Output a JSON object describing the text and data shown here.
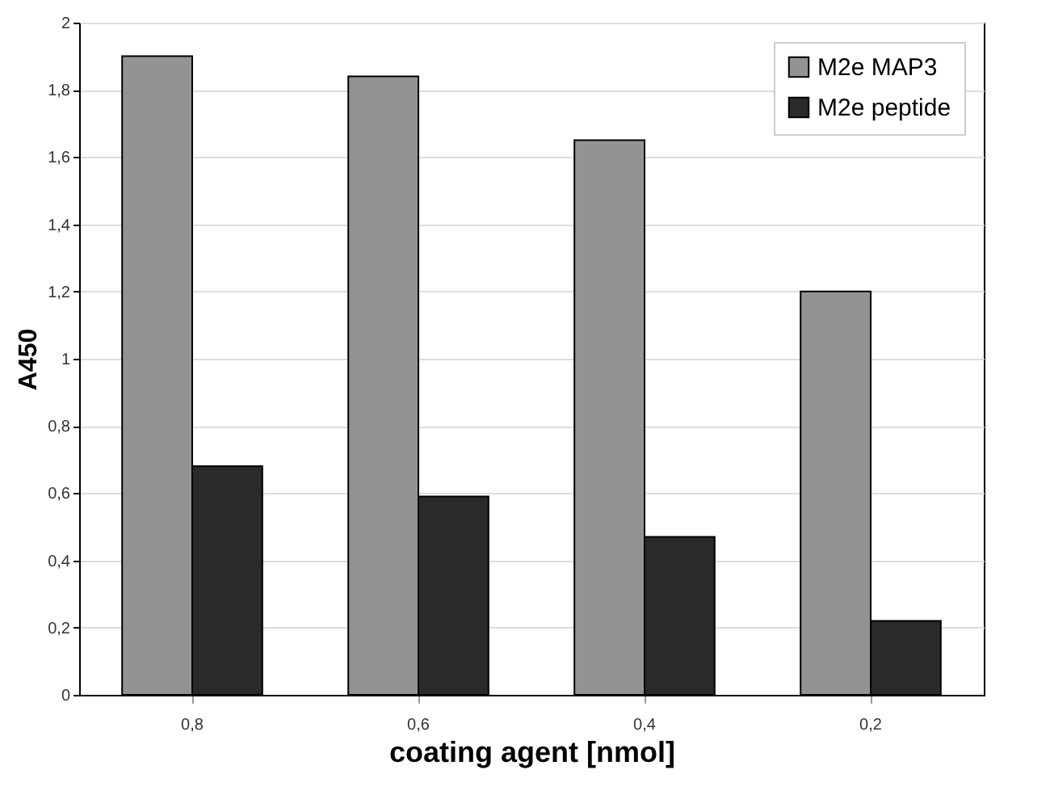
{
  "chart_data": {
    "type": "bar",
    "xlabel": "coating agent [nmol]",
    "ylabel": "A450",
    "categories": [
      "0,8",
      "0,6",
      "0,4",
      "0,2"
    ],
    "series": [
      {
        "name": "M2e MAP3",
        "color": "#939393",
        "values": [
          1.9,
          1.84,
          1.65,
          1.2
        ]
      },
      {
        "name": "M2e peptide",
        "color": "#2a2a2a",
        "values": [
          0.68,
          0.59,
          0.47,
          0.22
        ]
      }
    ],
    "ylim": [
      0,
      2
    ],
    "yticks": [
      0,
      {
        "value": 0.2,
        "label": "0,2"
      },
      {
        "value": 0.4,
        "label": "0,4"
      },
      {
        "value": 0.6,
        "label": "0,6"
      },
      {
        "value": 0.8,
        "label": "0,8"
      },
      1,
      {
        "value": 1.2,
        "label": "1,2"
      },
      {
        "value": 1.4,
        "label": "1,4"
      },
      {
        "value": 1.6,
        "label": "1,6"
      },
      {
        "value": 1.8,
        "label": "1,8"
      },
      2
    ],
    "grid": "y",
    "legend": "top right"
  }
}
